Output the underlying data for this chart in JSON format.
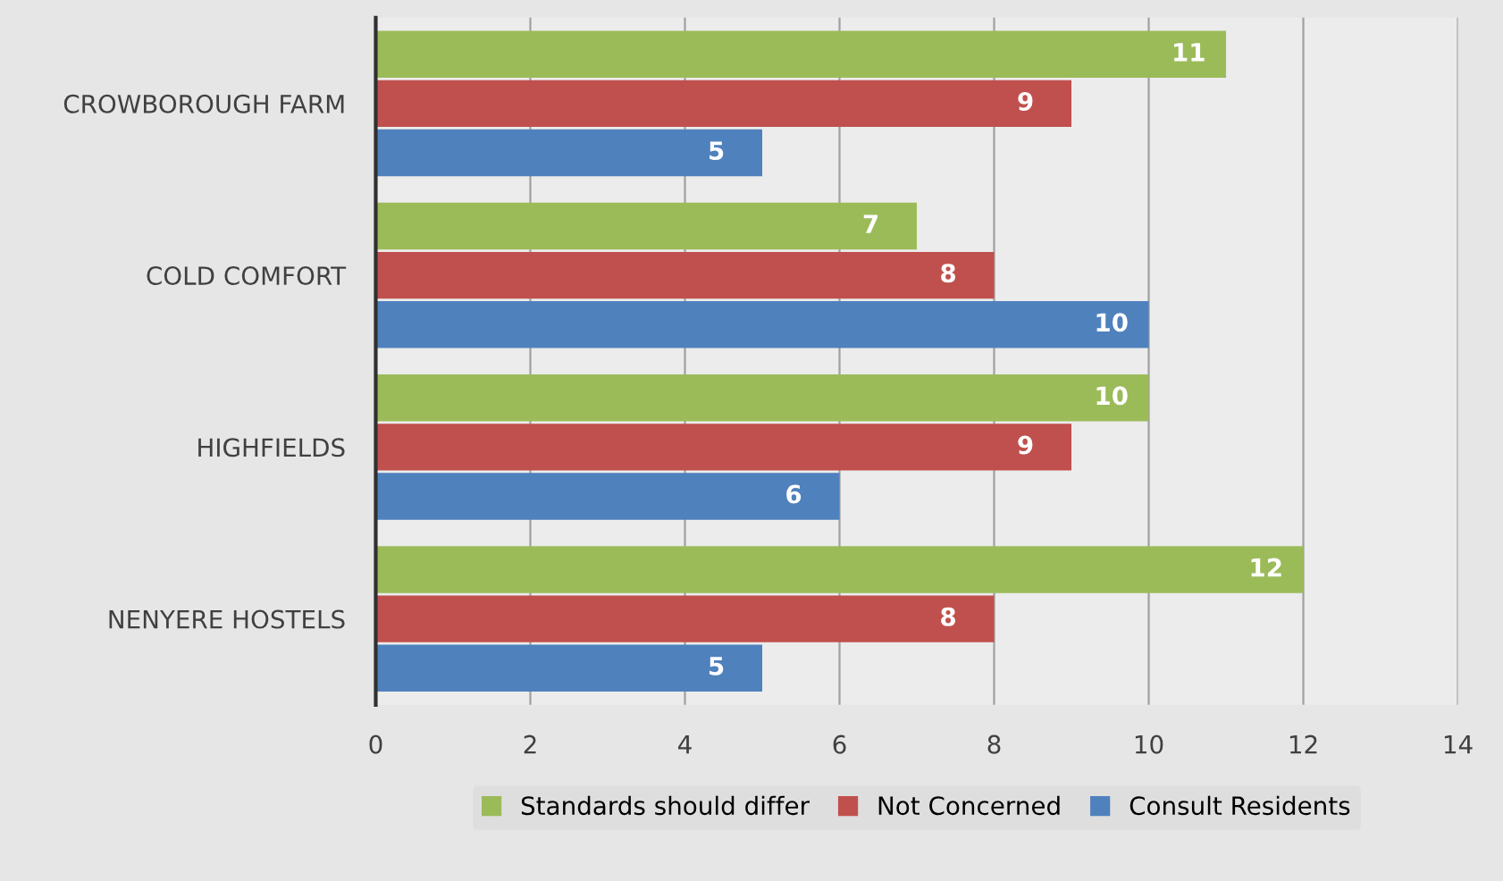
{
  "chart_data": {
    "type": "bar",
    "orientation": "horizontal",
    "categories": [
      "CROWBOROUGH FARM",
      "COLD COMFORT",
      "HIGHFIELDS",
      "NENYERE HOSTELS"
    ],
    "series": [
      {
        "name": "Standards should differ",
        "color": "#9bbb59",
        "values": [
          11,
          7,
          10,
          12
        ]
      },
      {
        "name": "Not Concerned",
        "color": "#c0504d",
        "values": [
          9,
          8,
          9,
          8
        ]
      },
      {
        "name": "Consult Residents",
        "color": "#4f81bd",
        "values": [
          5,
          10,
          6,
          5
        ]
      }
    ],
    "xlim": [
      0,
      14
    ],
    "xticks": [
      0,
      2,
      4,
      6,
      8,
      10,
      12,
      14
    ],
    "grid": "x",
    "legend": "bottom",
    "data_labels": true
  }
}
